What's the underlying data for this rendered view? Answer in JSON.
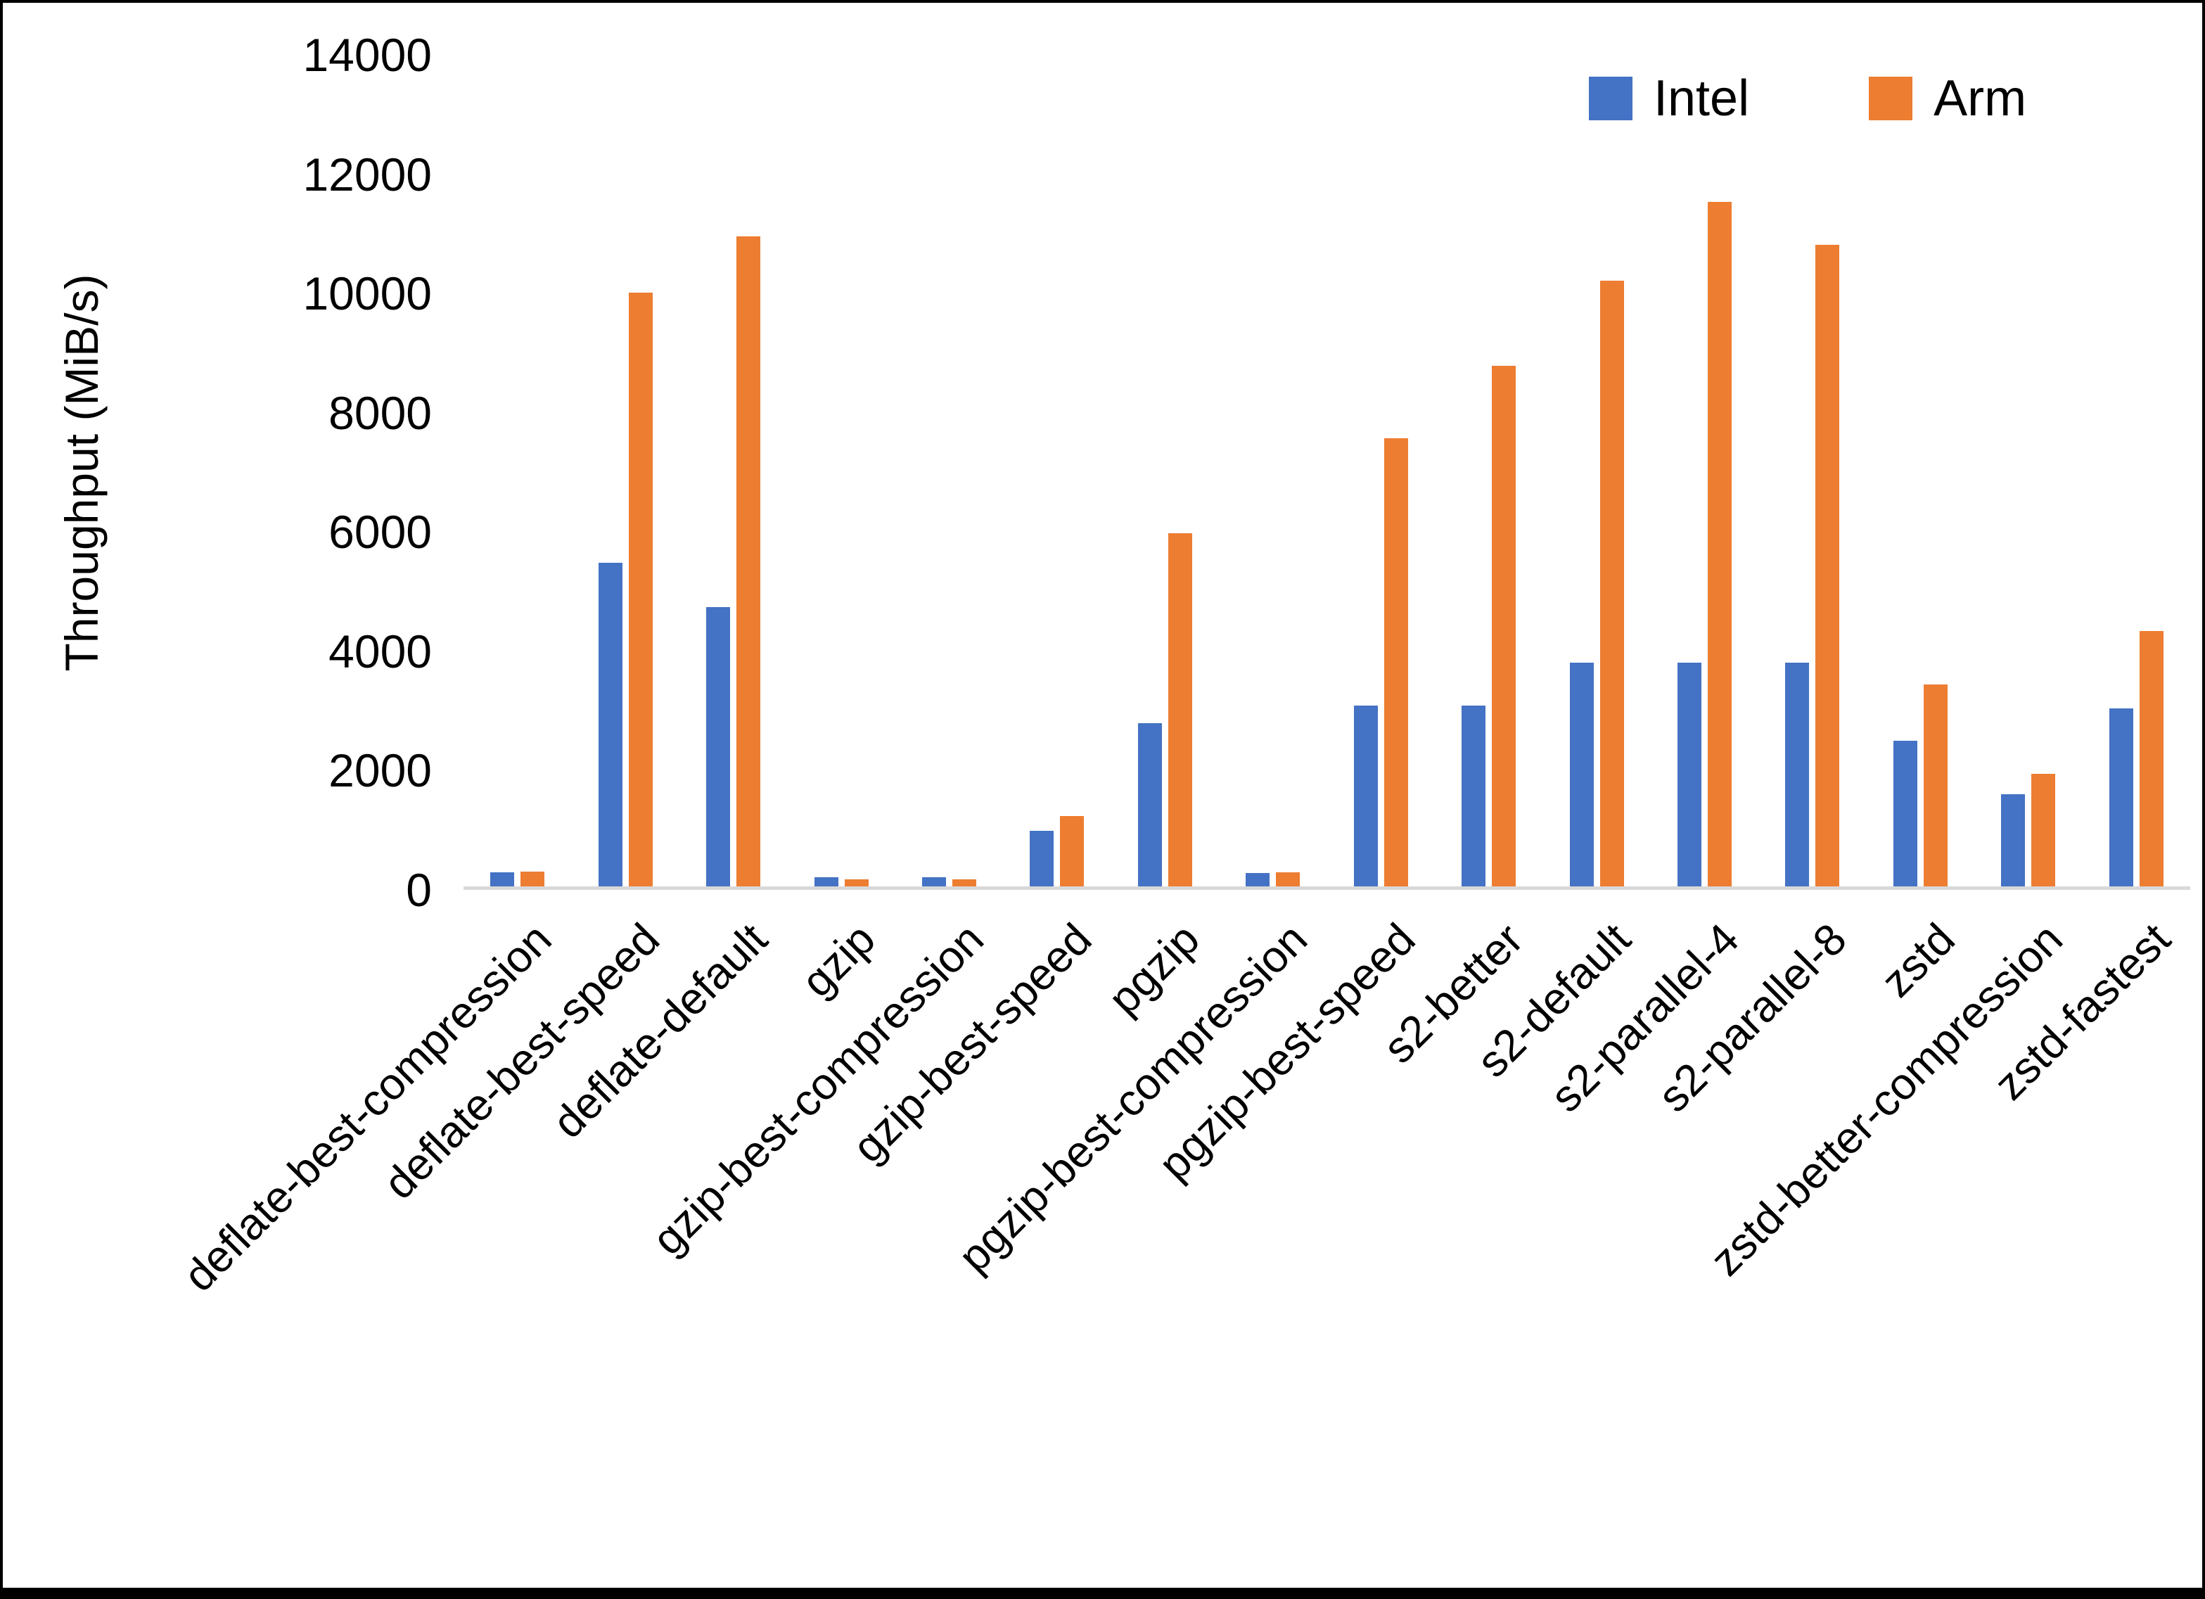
{
  "chart_data": {
    "type": "bar",
    "title": "",
    "xlabel": "",
    "ylabel": "Throughput (MiB/s)",
    "ylim": [
      0,
      14000
    ],
    "yticks": [
      0,
      2000,
      4000,
      6000,
      8000,
      10000,
      12000,
      14000
    ],
    "grid": false,
    "legend_position": "top-right",
    "categories": [
      "deflate-best-compression",
      "deflate-best-speed",
      "deflate-default",
      "gzip",
      "gzip-best-compression",
      "gzip-best-speed",
      "pgzip",
      "pgzip-best-compression",
      "pgzip-best-speed",
      "s2-better",
      "s2-default",
      "s2-parallel-4",
      "s2-parallel-8",
      "zstd",
      "zstd-better-compression",
      "zstd-fastest"
    ],
    "series": [
      {
        "name": "Intel",
        "color": "#4472C4",
        "values": [
          240,
          5450,
          4700,
          150,
          150,
          930,
          2750,
          230,
          3050,
          3050,
          3770,
          3770,
          3770,
          2450,
          1550,
          3000
        ]
      },
      {
        "name": "Arm",
        "color": "#ED7D31",
        "values": [
          250,
          10000,
          10950,
          120,
          120,
          1180,
          5950,
          240,
          7550,
          8770,
          10200,
          11530,
          10800,
          3400,
          1900,
          4300
        ]
      }
    ]
  },
  "colors": {
    "background": "#FFFFFF",
    "frame": "#000000",
    "axis_line": "#D9D9D9",
    "text": "#000000"
  }
}
